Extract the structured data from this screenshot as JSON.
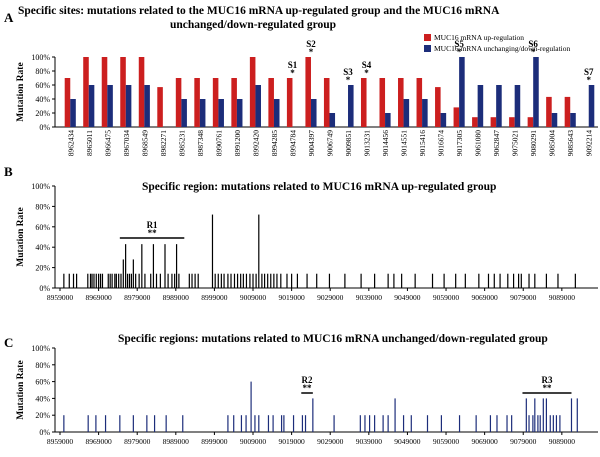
{
  "colors": {
    "up": "#cc1f1f",
    "down": "#1c2d7a",
    "axis": "#000000"
  },
  "chart_data": [
    {
      "panel": "A",
      "type": "bar",
      "title": "Specific sites: mutations related to the MUC16 mRNA up-regulated group and the MUC16 mRNA unchanged/down-regulated group",
      "title_line1": "Specific sites: mutations related to the MUC16 mRNA up-regulated group and the MUC16 mRNA",
      "title_line2": "unchanged/down-regulated group",
      "ylabel": "Mutation Rate",
      "ylim": [
        0,
        100
      ],
      "yticks": [
        "0%",
        "20%",
        "40%",
        "60%",
        "80%",
        "100%"
      ],
      "legend": [
        "MUC16 mRNA up-regulation",
        "MUC16 mRNA unchanging/down-regulation"
      ],
      "categories": [
        "8962434",
        "8965011",
        "8966475",
        "8967034",
        "8968549",
        "8982271",
        "8985231",
        "8987348",
        "8990761",
        "8991200",
        "8992420",
        "8994285",
        "8994784",
        "9004397",
        "9006749",
        "9009851",
        "9013231",
        "9014456",
        "9014551",
        "9015416",
        "9016674",
        "9017305",
        "9061080",
        "9062847",
        "9075021",
        "9080291",
        "9085004",
        "9085643",
        "9092214"
      ],
      "series": [
        {
          "name": "MUC16 mRNA up-regulation",
          "values": [
            70,
            100,
            100,
            100,
            100,
            57,
            70,
            70,
            70,
            70,
            100,
            70,
            70,
            100,
            70,
            0,
            70,
            70,
            70,
            70,
            57,
            28,
            14,
            14,
            14,
            14,
            43,
            43,
            0
          ]
        },
        {
          "name": "MUC16 mRNA unchanging/down-regulation",
          "values": [
            40,
            60,
            60,
            60,
            60,
            0,
            40,
            40,
            40,
            40,
            60,
            40,
            0,
            40,
            20,
            60,
            0,
            20,
            40,
            40,
            20,
            100,
            60,
            60,
            60,
            100,
            20,
            20,
            60
          ]
        }
      ],
      "site_labels": [
        {
          "label": "S1",
          "index": 12
        },
        {
          "label": "S2",
          "index": 13
        },
        {
          "label": "S3",
          "index": 15
        },
        {
          "label": "S4",
          "index": 16
        },
        {
          "label": "S5",
          "index": 21
        },
        {
          "label": "S6",
          "index": 25
        },
        {
          "label": "S7",
          "index": 28
        }
      ],
      "significance_marker": "*"
    },
    {
      "panel": "B",
      "type": "bar",
      "title": "Specific region: mutations related to MUC16 mRNA up-regulated group",
      "ylabel": "Mutation  Rate",
      "ylim": [
        0,
        100
      ],
      "yticks": [
        "0%",
        "20%",
        "40%",
        "60%",
        "80%",
        "100%"
      ],
      "xlim": [
        8959000,
        9095000
      ],
      "xticks": [
        "8959000",
        "8969000",
        "8979000",
        "8989000",
        "8999000",
        "9009000",
        "9019000",
        "9029000",
        "9039000",
        "9049000",
        "9059000",
        "9069000",
        "9079000",
        "9089000"
      ],
      "x": [
        8960000,
        8961400,
        8962500,
        8963300,
        8966200,
        8966900,
        8967300,
        8967800,
        8968400,
        8969000,
        8969500,
        8970000,
        8971500,
        8972000,
        8972500,
        8973200,
        8973600,
        8974200,
        8974800,
        8975400,
        8976000,
        8976500,
        8977000,
        8977500,
        8978000,
        8978600,
        8979500,
        8980200,
        8981000,
        8982500,
        8983200,
        8984000,
        8985000,
        8986200,
        8987000,
        8988000,
        8988700,
        8989200,
        8989800,
        8992500,
        8993200,
        8994000,
        8994800,
        8998500,
        8999200,
        9000000,
        9000800,
        9001500,
        9002500,
        9003300,
        9004200,
        9005000,
        9005800,
        9006500,
        9007300,
        9008200,
        9009000,
        9009800,
        9010500,
        9011300,
        9012000,
        9012800,
        9013600,
        9014400,
        9015200,
        9016200,
        9017800,
        9019000,
        9020500,
        9023000,
        9025500,
        9028800,
        9032800,
        9037000,
        9040500,
        9044000,
        9045500,
        9047500,
        9051000,
        9055500,
        9058500,
        9061500,
        9064000,
        9067500,
        9070000,
        9071500,
        9073000,
        9075000,
        9076500,
        9077800,
        9078500,
        9080500,
        9082000,
        9085000,
        9088000,
        9092500
      ],
      "values": [
        14,
        14,
        14,
        14,
        14,
        14,
        14,
        14,
        14,
        14,
        14,
        14,
        14,
        14,
        14,
        14,
        14,
        14,
        14,
        28,
        43,
        14,
        14,
        14,
        28,
        14,
        14,
        43,
        14,
        14,
        43,
        14,
        14,
        43,
        14,
        14,
        14,
        43,
        14,
        14,
        14,
        14,
        14,
        72,
        14,
        14,
        14,
        14,
        14,
        14,
        14,
        14,
        14,
        14,
        14,
        14,
        14,
        14,
        72,
        14,
        14,
        14,
        14,
        14,
        14,
        14,
        14,
        14,
        14,
        14,
        14,
        14,
        14,
        14,
        14,
        14,
        14,
        14,
        14,
        14,
        14,
        14,
        14,
        14,
        14,
        14,
        14,
        14,
        14,
        14,
        14,
        14,
        14,
        14,
        14,
        14
      ],
      "regions": [
        {
          "label": "R1",
          "significance": "**",
          "start": 8974500,
          "end": 8991200
        }
      ]
    },
    {
      "panel": "C",
      "type": "bar",
      "title": "Specific regions: mutations related to MUC16 mRNA unchanged/down-regulated group",
      "ylabel": "Mutation  Rate",
      "ylim": [
        0,
        100
      ],
      "yticks": [
        "0%",
        "20%",
        "40%",
        "60%",
        "80%",
        "100%"
      ],
      "xlim": [
        8959000,
        9095000
      ],
      "xticks": [
        "8959000",
        "8969000",
        "8979000",
        "8989000",
        "8999000",
        "9009000",
        "9019000",
        "9029000",
        "9039000",
        "9049000",
        "9059000",
        "9069000",
        "9079000",
        "9089000"
      ],
      "x": [
        8960000,
        8966300,
        8968300,
        8970800,
        8974500,
        8978000,
        8981500,
        8983500,
        8986500,
        8990800,
        9002500,
        9004000,
        9006000,
        9007200,
        9008500,
        9009500,
        9010500,
        9013000,
        9014200,
        9016400,
        9017000,
        9019500,
        9021800,
        9022600,
        9024500,
        9030000,
        9036800,
        9038000,
        9039200,
        9040500,
        9042700,
        9044000,
        9045800,
        9048000,
        9050000,
        9054200,
        9057800,
        9062500,
        9066800,
        9070500,
        9072200,
        9074800,
        9076000,
        9079800,
        9080500,
        9081500,
        9082000,
        9082800,
        9083400,
        9084200,
        9085000,
        9086000,
        9086800,
        9087600,
        9088500,
        9091500,
        9093000
      ],
      "values": [
        20,
        20,
        20,
        20,
        20,
        20,
        20,
        20,
        20,
        20,
        20,
        20,
        20,
        20,
        60,
        20,
        20,
        20,
        20,
        20,
        20,
        20,
        20,
        20,
        40,
        20,
        20,
        20,
        20,
        20,
        20,
        20,
        40,
        20,
        20,
        20,
        20,
        20,
        20,
        20,
        20,
        20,
        20,
        40,
        20,
        20,
        40,
        20,
        20,
        40,
        40,
        20,
        20,
        20,
        20,
        40,
        40
      ],
      "regions": [
        {
          "label": "R2",
          "significance": "**",
          "start": 9021500,
          "end": 9024500
        },
        {
          "label": "R3",
          "significance": "**",
          "start": 9078800,
          "end": 9091500
        }
      ]
    }
  ]
}
